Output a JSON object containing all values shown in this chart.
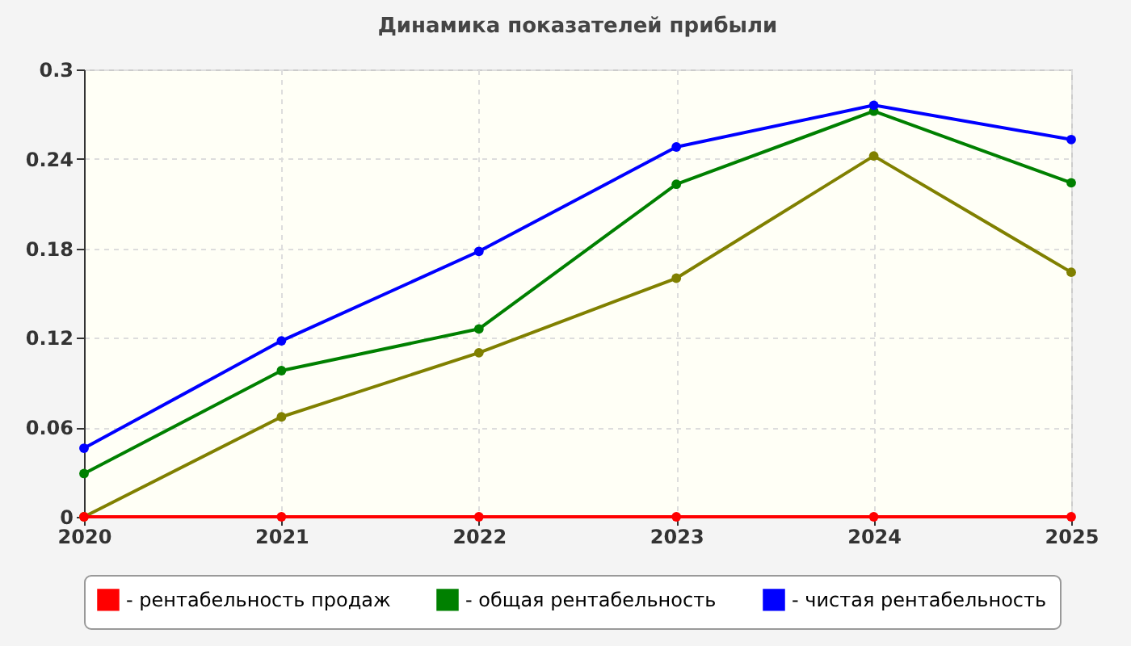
{
  "chart_data": {
    "type": "line",
    "title": "Динамика показателей прибыли",
    "x": [
      2020,
      2021,
      2022,
      2023,
      2024,
      2025
    ],
    "xlim": [
      2020,
      2025
    ],
    "xticks": [
      2020,
      2021,
      2022,
      2023,
      2024,
      2025
    ],
    "ylim": [
      0,
      0.3
    ],
    "yticks": [
      0,
      0.06,
      0.12,
      0.18,
      0.24,
      0.3
    ],
    "grid": true,
    "legend": "bottom",
    "marker": "circle",
    "line_style": "solid",
    "series": [
      {
        "color": "#808000",
        "values": [
          0,
          0.067,
          0.11,
          0.16,
          0.242,
          0.164
        ]
      },
      {
        "name": "- рентабельность продаж",
        "color": "#ff0000",
        "values": [
          0,
          0,
          0,
          0,
          0,
          0
        ]
      },
      {
        "name": "- общая рентабельность",
        "color": "#008000",
        "values": [
          0.029,
          0.098,
          0.126,
          0.223,
          0.272,
          0.224
        ]
      },
      {
        "name": "- чистая рентабельность",
        "color": "#0000ff",
        "values": [
          0.046,
          0.118,
          0.178,
          0.248,
          0.276,
          0.253
        ]
      }
    ]
  }
}
